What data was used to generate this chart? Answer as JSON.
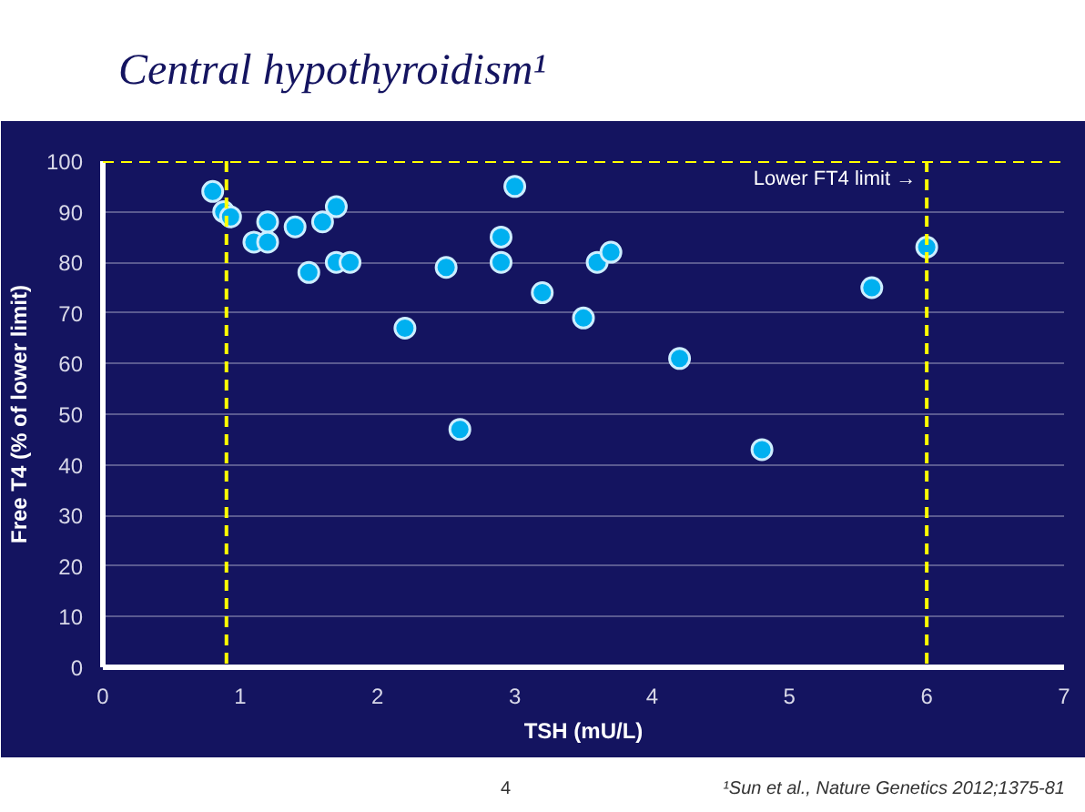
{
  "chart_data": {
    "type": "scatter",
    "title": "Central hypothyroidism¹",
    "xlabel": "TSH (mU/L)",
    "ylabel": "Free T4 (% of lower limit)",
    "x": [
      0.8,
      0.88,
      0.93,
      1.1,
      1.2,
      1.2,
      1.4,
      1.5,
      1.6,
      1.7,
      1.7,
      1.8,
      2.2,
      2.5,
      2.6,
      2.9,
      2.9,
      3.0,
      3.2,
      3.5,
      3.6,
      3.7,
      4.2,
      4.8,
      5.6,
      6.0
    ],
    "values": [
      94,
      90,
      89,
      84,
      84,
      88,
      87,
      78,
      88,
      91,
      80,
      80,
      67,
      79,
      47,
      85,
      80,
      95,
      74,
      69,
      80,
      82,
      61,
      43,
      75,
      83
    ],
    "color": "#00b0f0",
    "marker": "circle",
    "xlim": [
      0,
      7
    ],
    "ylim": [
      0,
      100
    ],
    "xticks": [
      0,
      1,
      2,
      3,
      4,
      5,
      6,
      7
    ],
    "yticks": [
      0,
      10,
      20,
      30,
      40,
      50,
      60,
      70,
      80,
      90,
      100
    ],
    "grid": "y",
    "ref_lines": [
      {
        "axis": "y",
        "value": 100,
        "label": "Lower FT4 limit →",
        "color": "#ffff00",
        "line_style": "dashed"
      },
      {
        "axis": "x",
        "value": 0.9,
        "label": null,
        "color": "#ffff00",
        "line_style": "dashed"
      },
      {
        "axis": "x",
        "value": 6,
        "label": null,
        "color": "#ffff00",
        "line_style": "dashed"
      }
    ],
    "annotations": [
      "4",
      "¹Sun et al., Nature Genetics 2012;1375-81"
    ]
  }
}
